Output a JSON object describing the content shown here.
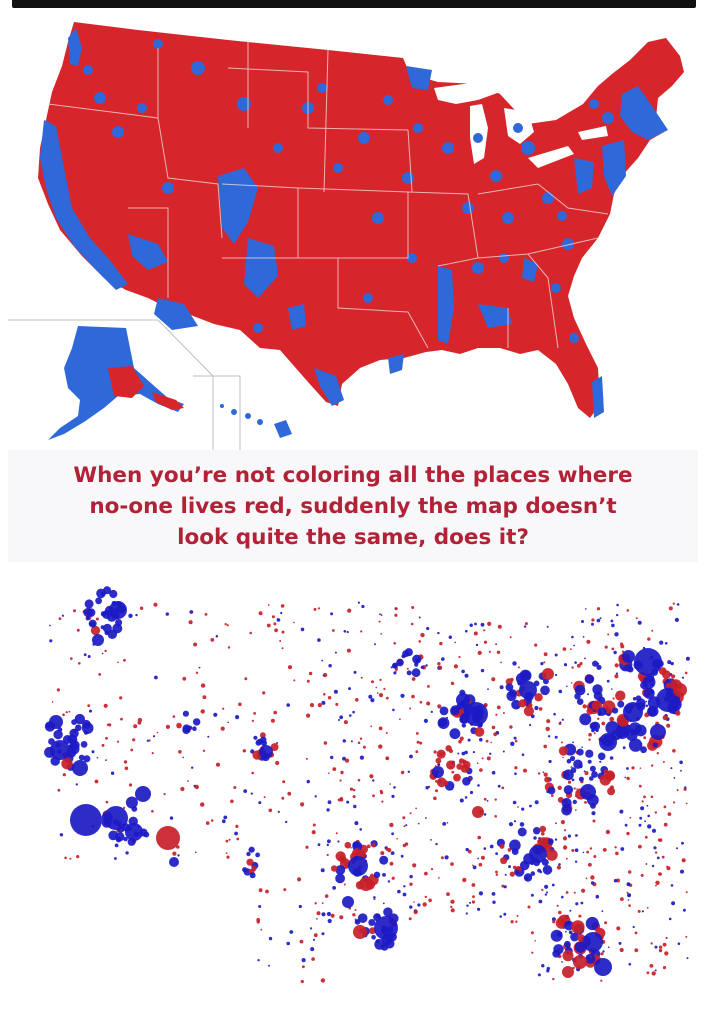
{
  "caption": {
    "line1": "When you’re not coloring all the places where",
    "line2": "no-one lives red, suddenly the map doesn’t",
    "line3": "look quite the same, does it?"
  },
  "colors": {
    "republican_red": "#d6262b",
    "democrat_blue": "#2f68d8",
    "bubble_blue": "#1c1ac4",
    "bubble_red": "#c81f28",
    "caption_text": "#b12236",
    "state_lines": "#f2d6d6"
  },
  "maps": [
    {
      "type": "county-choropleth",
      "categories": [
        "republican_red",
        "democrat_blue"
      ]
    },
    {
      "type": "proportional-symbol",
      "categories": [
        "democrat_blue",
        "republican_red"
      ]
    }
  ]
}
